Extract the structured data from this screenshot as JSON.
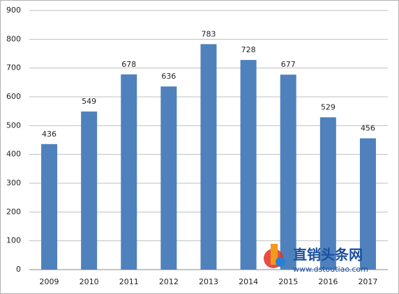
{
  "chart_data": {
    "type": "bar",
    "categories": [
      "2009",
      "2010",
      "2011",
      "2012",
      "2013",
      "2014",
      "2015",
      "2016",
      "2017"
    ],
    "values": [
      436,
      549,
      678,
      636,
      783,
      728,
      677,
      529,
      456
    ],
    "color": "#4f81bd",
    "ylim": [
      0,
      900
    ],
    "yticks": [
      0,
      100,
      200,
      300,
      400,
      500,
      600,
      700,
      800,
      900
    ],
    "grid": true,
    "watermark": {
      "title": "直销头条网",
      "url": "www.dstoutiao.com"
    }
  }
}
